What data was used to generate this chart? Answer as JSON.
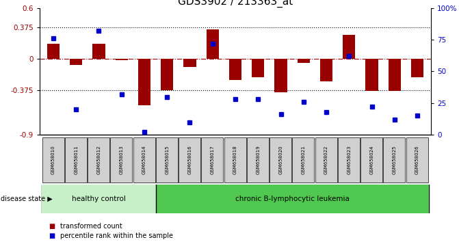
{
  "title": "GDS3902 / 213363_at",
  "samples": [
    "GSM658010",
    "GSM658011",
    "GSM658012",
    "GSM658013",
    "GSM658014",
    "GSM658015",
    "GSM658016",
    "GSM658017",
    "GSM658018",
    "GSM658019",
    "GSM658020",
    "GSM658021",
    "GSM658022",
    "GSM658023",
    "GSM658024",
    "GSM658025",
    "GSM658026"
  ],
  "bar_values": [
    0.18,
    -0.07,
    0.18,
    -0.02,
    -0.55,
    -0.37,
    -0.1,
    0.35,
    -0.25,
    -0.22,
    -0.4,
    -0.05,
    -0.27,
    0.28,
    -0.38,
    -0.38,
    -0.22
  ],
  "percentile_values": [
    76,
    20,
    82,
    32,
    2,
    30,
    10,
    72,
    28,
    28,
    16,
    26,
    18,
    62,
    22,
    12,
    15
  ],
  "healthy_count": 5,
  "ylim_left": [
    -0.9,
    0.6
  ],
  "ylim_right": [
    0,
    100
  ],
  "yticks_left": [
    -0.9,
    -0.375,
    0.0,
    0.375,
    0.6
  ],
  "ytick_labels_left": [
    "-0.9",
    "-0.375",
    "0",
    "0.375",
    "0.6"
  ],
  "yticks_right": [
    0,
    25,
    50,
    75,
    100
  ],
  "ytick_labels_right": [
    "0",
    "25",
    "50",
    "75",
    "100%"
  ],
  "hlines": [
    0.375,
    -0.375
  ],
  "bar_color": "#990000",
  "dot_color": "#0000CC",
  "healthy_bg": "#c8f0c8",
  "leukemia_bg": "#50c850",
  "label_bg": "#d0d0d0",
  "zero_line_color": "#990000",
  "legend_bar_label": "transformed count",
  "legend_dot_label": "percentile rank within the sample",
  "group_label": "disease state",
  "group1_label": "healthy control",
  "group2_label": "chronic B-lymphocytic leukemia"
}
